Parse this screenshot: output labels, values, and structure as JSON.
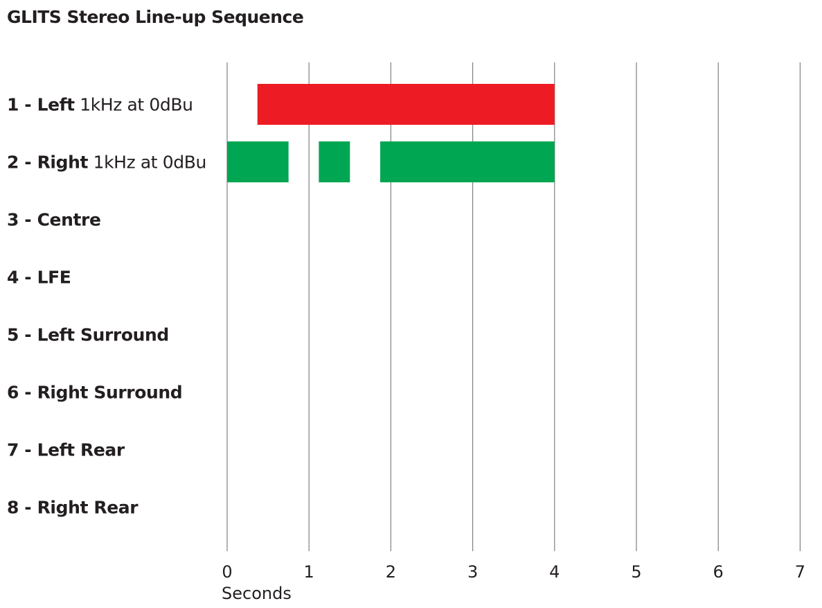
{
  "chart_data": {
    "type": "bar",
    "title": "GLITS Stereo Line-up Sequence",
    "xlabel": "Seconds",
    "xlim": [
      0,
      7
    ],
    "x_ticks": [
      "0",
      "1",
      "2",
      "3",
      "4",
      "5",
      "6",
      "7"
    ],
    "grid": "vertical",
    "colors": {
      "left": "#ed1c24",
      "right": "#00a651",
      "grid": "#808080"
    },
    "channels": [
      {
        "number": "1 - Left",
        "detail": "1kHz at 0dBu",
        "segments": [
          [
            0.37,
            4.0
          ]
        ],
        "color": "#ed1c24"
      },
      {
        "number": "2 - Right",
        "detail": "1kHz at 0dBu",
        "segments": [
          [
            0.0,
            0.75
          ],
          [
            1.12,
            1.5
          ],
          [
            1.87,
            4.0
          ]
        ],
        "color": "#00a651"
      },
      {
        "number": "3 - Centre",
        "detail": "",
        "segments": []
      },
      {
        "number": "4 - LFE",
        "detail": "",
        "segments": []
      },
      {
        "number": "5 - Left Surround",
        "detail": "",
        "segments": []
      },
      {
        "number": "6 - Right Surround",
        "detail": "",
        "segments": []
      },
      {
        "number": "7 - Left Rear",
        "detail": "",
        "segments": []
      },
      {
        "number": "8 - Right Rear",
        "detail": "",
        "segments": []
      }
    ]
  }
}
